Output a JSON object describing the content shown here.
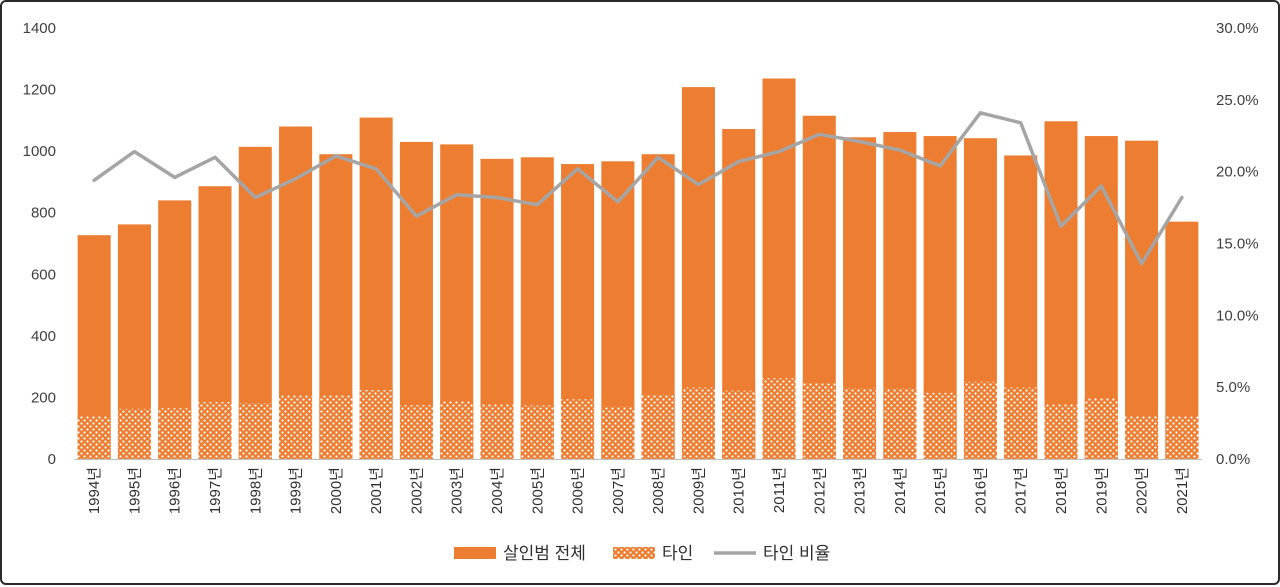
{
  "chart_data": {
    "type": "bar",
    "title": "",
    "categories": [
      "1994년",
      "1995년",
      "1996년",
      "1997년",
      "1998년",
      "1999년",
      "2000년",
      "2001년",
      "2002년",
      "2003년",
      "2004년",
      "2005년",
      "2006년",
      "2007년",
      "2008년",
      "2009년",
      "2010년",
      "2011년",
      "2012년",
      "2013년",
      "2014년",
      "2015년",
      "2016년",
      "2017년",
      "2018년",
      "2019년",
      "2020년",
      "2021년"
    ],
    "series": [
      {
        "name": "살인범 전체",
        "kind": "bar",
        "color": "#ED7D31",
        "values": [
          727,
          762,
          840,
          886,
          1014,
          1080,
          990,
          1109,
          1030,
          1022,
          975,
          980,
          958,
          967,
          990,
          1208,
          1072,
          1236,
          1115,
          1045,
          1062,
          1049,
          1042,
          986,
          1097,
          1049,
          1034,
          771
        ]
      },
      {
        "name": "타인",
        "kind": "bar-pattern",
        "color": "#ED7D31",
        "values": [
          141,
          163,
          165,
          185,
          182,
          209,
          208,
          224,
          175,
          188,
          178,
          174,
          194,
          171,
          210,
          232,
          222,
          262,
          248,
          230,
          230,
          215,
          251,
          232,
          177,
          198,
          141,
          141
        ]
      },
      {
        "name": "타인 비율",
        "kind": "line",
        "axis": "right",
        "color": "#A5A5A5",
        "values": [
          19.4,
          21.4,
          19.6,
          21.0,
          18.2,
          19.5,
          21.1,
          20.2,
          16.9,
          18.4,
          18.2,
          17.7,
          20.2,
          17.9,
          21.0,
          19.1,
          20.7,
          21.4,
          22.6,
          22.1,
          21.5,
          20.4,
          24.1,
          23.4,
          16.2,
          19.0,
          13.6,
          18.2
        ]
      }
    ],
    "y_left": {
      "ylim": [
        0,
        1400
      ],
      "ticks": [
        0,
        200,
        400,
        600,
        800,
        1000,
        1200,
        1400
      ],
      "tick_labels": [
        "0",
        "200",
        "400",
        "600",
        "800",
        "1000",
        "1200",
        "1400"
      ]
    },
    "y_right": {
      "ylim": [
        0,
        30
      ],
      "ticks": [
        0,
        5,
        10,
        15,
        20,
        25,
        30
      ],
      "tick_labels": [
        "0.0%",
        "5.0%",
        "10.0%",
        "15.0%",
        "20.0%",
        "25.0%",
        "30.0%"
      ]
    },
    "xlabel": "",
    "ylabel": "",
    "grid": false,
    "legend": {
      "position": "bottom-center",
      "entries": [
        "살인범 전체",
        "타인",
        "타인 비율"
      ]
    }
  }
}
